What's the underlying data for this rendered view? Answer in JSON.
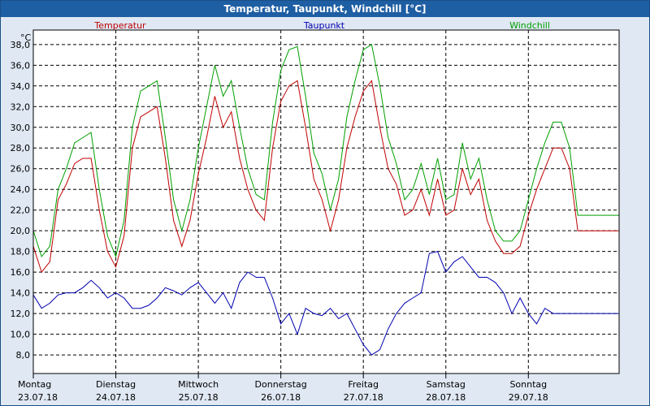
{
  "title": "Temperatur, Taupunkt, Windchill [°C]",
  "colors": {
    "background": "#dfe8f3",
    "titlebar": "#1e5ea3",
    "plot": "#ffffff",
    "temperatur": "#c00000",
    "taupunkt": "#0000b0",
    "windchill": "#00a000"
  },
  "chart_data": {
    "type": "line",
    "title": "Temperatur, Taupunkt, Windchill [°C]",
    "ylabel": "°C",
    "xlabel": "",
    "ylim": [
      6.2,
      39.4
    ],
    "xlim": [
      0,
      7.1
    ],
    "grid": true,
    "yticks": [
      "38,0",
      "36,0",
      "34,0",
      "32,0",
      "30,0",
      "28,0",
      "26,0",
      "24,0",
      "22,0",
      "20,0",
      "18,0",
      "16,0",
      "14,0",
      "12,0",
      "10,0",
      "8,0"
    ],
    "yticks_values": [
      38,
      36,
      34,
      32,
      30,
      28,
      26,
      24,
      22,
      20,
      18,
      16,
      14,
      12,
      10,
      8
    ],
    "xticks": [
      {
        "day": "Montag",
        "date": "23.07.18"
      },
      {
        "day": "Dienstag",
        "date": "24.07.18"
      },
      {
        "day": "Mittwoch",
        "date": "25.07.18"
      },
      {
        "day": "Donnerstag",
        "date": "26.07.18"
      },
      {
        "day": "Freitag",
        "date": "27.07.18"
      },
      {
        "day": "Samstag",
        "date": "28.07.18"
      },
      {
        "day": "Sonntag",
        "date": "29.07.18"
      }
    ],
    "series": [
      {
        "name": "Temperatur",
        "color": "#c00000",
        "x": [
          0,
          0.1,
          0.2,
          0.3,
          0.4,
          0.5,
          0.6,
          0.7,
          0.8,
          0.9,
          1.0,
          1.1,
          1.2,
          1.3,
          1.4,
          1.5,
          1.6,
          1.7,
          1.8,
          1.9,
          2.0,
          2.1,
          2.2,
          2.3,
          2.4,
          2.5,
          2.6,
          2.7,
          2.8,
          2.9,
          3.0,
          3.1,
          3.2,
          3.3,
          3.4,
          3.5,
          3.6,
          3.7,
          3.8,
          3.9,
          4.0,
          4.1,
          4.2,
          4.3,
          4.4,
          4.5,
          4.6,
          4.7,
          4.8,
          4.9,
          5.0,
          5.1,
          5.2,
          5.3,
          5.4,
          5.5,
          5.6,
          5.7,
          5.8,
          5.9,
          6.0,
          6.1,
          6.2,
          6.3,
          6.4,
          6.5,
          6.6,
          6.7,
          6.8,
          6.9,
          7.0,
          7.1
        ],
        "values": [
          18.5,
          16.0,
          17.0,
          23.0,
          24.5,
          26.5,
          27.0,
          27.0,
          22.0,
          18.0,
          16.5,
          19.5,
          28.0,
          31.0,
          31.5,
          32.0,
          27.0,
          21.0,
          18.5,
          21.0,
          25.5,
          29.0,
          33.0,
          30.0,
          31.5,
          27.0,
          24.0,
          22.0,
          21.0,
          28.0,
          32.5,
          34.0,
          34.5,
          30.0,
          25.0,
          23.0,
          20.0,
          23.0,
          28.0,
          31.0,
          33.5,
          34.5,
          30.0,
          26.0,
          24.5,
          21.5,
          22.0,
          24.0,
          21.5,
          25.0,
          21.5,
          22.0,
          26.0,
          23.5,
          25.0,
          21.0,
          19.0,
          17.8,
          17.8,
          18.5,
          21.5,
          24.0,
          26.0,
          28.0,
          28.0,
          26.0,
          20.0,
          20.0,
          20.0,
          20.0,
          20.0,
          20.0
        ]
      },
      {
        "name": "Taupunkt",
        "color": "#0000b0",
        "x": [
          0,
          0.1,
          0.2,
          0.3,
          0.4,
          0.5,
          0.6,
          0.7,
          0.8,
          0.9,
          1.0,
          1.1,
          1.2,
          1.3,
          1.4,
          1.5,
          1.6,
          1.7,
          1.8,
          1.9,
          2.0,
          2.1,
          2.2,
          2.3,
          2.4,
          2.5,
          2.6,
          2.7,
          2.8,
          2.9,
          3.0,
          3.1,
          3.2,
          3.3,
          3.4,
          3.5,
          3.6,
          3.7,
          3.8,
          3.9,
          4.0,
          4.1,
          4.2,
          4.3,
          4.4,
          4.5,
          4.6,
          4.7,
          4.8,
          4.9,
          5.0,
          5.1,
          5.2,
          5.3,
          5.4,
          5.5,
          5.6,
          5.7,
          5.8,
          5.9,
          6.0,
          6.1,
          6.2,
          6.3,
          6.4,
          6.5,
          6.6,
          6.7,
          6.8,
          6.9,
          7.0,
          7.1
        ],
        "values": [
          13.8,
          12.5,
          13.0,
          13.8,
          14.0,
          14.0,
          14.5,
          15.2,
          14.5,
          13.5,
          14.0,
          13.5,
          12.5,
          12.5,
          12.8,
          13.5,
          14.5,
          14.2,
          13.8,
          14.5,
          15.0,
          14.0,
          13.0,
          14.0,
          12.5,
          15.0,
          16.0,
          15.5,
          15.5,
          13.5,
          11.0,
          12.0,
          10.0,
          12.5,
          12.0,
          11.8,
          12.5,
          11.5,
          12.0,
          10.5,
          9.0,
          8.0,
          8.5,
          10.5,
          12.0,
          13.0,
          13.5,
          14.0,
          17.8,
          18.0,
          16.0,
          17.0,
          17.5,
          16.5,
          15.5,
          15.5,
          15.0,
          14.0,
          12.0,
          13.5,
          12.0,
          11.0,
          12.5,
          12.0,
          12.0,
          12.0,
          12.0,
          12.0,
          12.0,
          12.0,
          12.0,
          12.0
        ]
      },
      {
        "name": "Windchill",
        "color": "#00a000",
        "x": [
          0,
          0.1,
          0.2,
          0.3,
          0.4,
          0.5,
          0.6,
          0.7,
          0.8,
          0.9,
          1.0,
          1.1,
          1.2,
          1.3,
          1.4,
          1.5,
          1.6,
          1.7,
          1.8,
          1.9,
          2.0,
          2.1,
          2.2,
          2.3,
          2.4,
          2.5,
          2.6,
          2.7,
          2.8,
          2.9,
          3.0,
          3.1,
          3.2,
          3.3,
          3.4,
          3.5,
          3.6,
          3.7,
          3.8,
          3.9,
          4.0,
          4.1,
          4.2,
          4.3,
          4.4,
          4.5,
          4.6,
          4.7,
          4.8,
          4.9,
          5.0,
          5.1,
          5.2,
          5.3,
          5.4,
          5.5,
          5.6,
          5.7,
          5.8,
          5.9,
          6.0,
          6.1,
          6.2,
          6.3,
          6.4,
          6.5,
          6.6,
          6.7,
          6.8,
          6.9,
          7.0,
          7.1
        ],
        "values": [
          20.0,
          17.5,
          18.5,
          24.0,
          26.0,
          28.5,
          29.0,
          29.5,
          24.0,
          19.5,
          17.5,
          21.0,
          30.0,
          33.5,
          34.0,
          34.5,
          29.0,
          23.0,
          20.0,
          23.0,
          28.0,
          32.0,
          36.0,
          33.0,
          34.5,
          30.0,
          26.0,
          23.5,
          23.0,
          30.5,
          35.5,
          37.5,
          37.8,
          33.0,
          27.5,
          25.5,
          22.0,
          25.0,
          31.0,
          34.5,
          37.5,
          38.0,
          34.0,
          29.0,
          26.5,
          23.0,
          24.0,
          26.5,
          23.5,
          27.0,
          23.0,
          23.5,
          28.5,
          25.0,
          27.0,
          23.0,
          20.0,
          19.0,
          19.0,
          20.0,
          23.0,
          26.0,
          28.5,
          30.5,
          30.5,
          28.0,
          21.5,
          21.5,
          21.5,
          21.5,
          21.5,
          21.5
        ]
      }
    ]
  }
}
